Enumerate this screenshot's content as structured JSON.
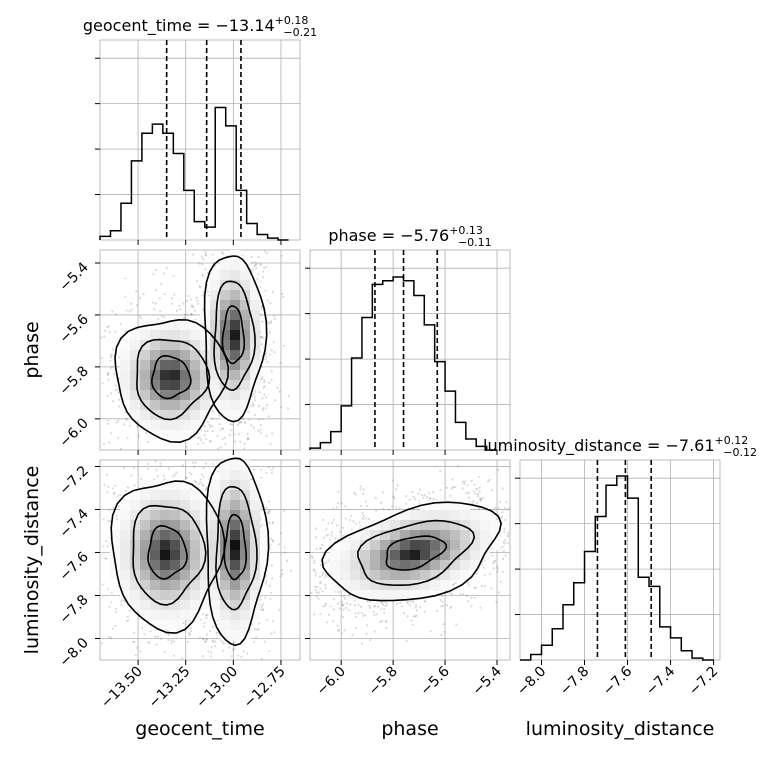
{
  "chart_data": {
    "type": "corner",
    "parameters": [
      {
        "name": "geocent_time",
        "label": "geocent_time",
        "title": {
          "main": "geocent_time = −13.14",
          "plus": "+0.18",
          "minus": "−0.21"
        },
        "range": [
          -13.7,
          -12.65
        ],
        "ticks": [
          -13.5,
          -13.25,
          -13.0,
          -12.75
        ],
        "tick_labels": [
          "−13.50",
          "−13.25",
          "−13.00",
          "−12.75"
        ],
        "quantiles": [
          -13.35,
          -13.14,
          -12.96
        ],
        "hist_bins": [
          -13.7,
          -13.645,
          -13.59,
          -13.535,
          -13.48,
          -13.425,
          -13.37,
          -13.315,
          -13.26,
          -13.205,
          -13.15,
          -13.095,
          -13.04,
          -12.985,
          -12.93,
          -12.875,
          -12.82,
          -12.765,
          -12.71
        ],
        "hist_counts": [
          0.02,
          0.05,
          0.2,
          0.43,
          0.58,
          0.63,
          0.58,
          0.47,
          0.27,
          0.1,
          0.07,
          0.72,
          0.62,
          0.27,
          0.09,
          0.03,
          0.01,
          0.0
        ]
      },
      {
        "name": "phase",
        "label": "phase",
        "title": {
          "main": "phase = −5.76",
          "plus": "+0.13",
          "minus": "−0.11"
        },
        "range": [
          -6.12,
          -5.35
        ],
        "ticks": [
          -6.0,
          -5.8,
          -5.6,
          -5.4
        ],
        "tick_labels": [
          "−6.0",
          "−5.8",
          "−5.6",
          "−5.4"
        ],
        "quantiles": [
          -5.87,
          -5.76,
          -5.63
        ],
        "hist_bins": [
          -6.12,
          -6.08,
          -6.04,
          -6.0,
          -5.96,
          -5.92,
          -5.88,
          -5.84,
          -5.8,
          -5.76,
          -5.72,
          -5.68,
          -5.64,
          -5.6,
          -5.56,
          -5.52,
          -5.48,
          -5.44,
          -5.4
        ],
        "hist_counts": [
          0.01,
          0.04,
          0.1,
          0.24,
          0.5,
          0.72,
          0.9,
          0.92,
          0.94,
          0.92,
          0.84,
          0.68,
          0.48,
          0.32,
          0.15,
          0.06,
          0.02,
          0.0
        ]
      },
      {
        "name": "luminosity_distance",
        "label": "luminosity_distance",
        "title": {
          "main": "luminosity_distance = −7.61",
          "plus": "+0.12",
          "minus": "−0.12"
        },
        "range": [
          -8.1,
          -7.17
        ],
        "ticks": [
          -8.0,
          -7.8,
          -7.6,
          -7.4,
          -7.2
        ],
        "tick_labels": [
          "−8.0",
          "−7.8",
          "−7.6",
          "−7.4",
          "−7.2"
        ],
        "quantiles": [
          -7.74,
          -7.61,
          -7.49
        ],
        "hist_bins": [
          -8.1,
          -8.05,
          -8.0,
          -7.95,
          -7.9,
          -7.85,
          -7.8,
          -7.75,
          -7.7,
          -7.65,
          -7.6,
          -7.55,
          -7.5,
          -7.45,
          -7.4,
          -7.35,
          -7.3,
          -7.25,
          -7.2
        ],
        "hist_counts": [
          0.0,
          0.03,
          0.08,
          0.17,
          0.3,
          0.42,
          0.59,
          0.78,
          0.95,
          1.0,
          0.88,
          0.45,
          0.4,
          0.18,
          0.12,
          0.05,
          0.01,
          0.0
        ]
      }
    ],
    "pair_cells": [
      {
        "row": 1,
        "col": 0,
        "blobs": [
          {
            "cx": -13.33,
            "cy": -5.84,
            "rx": 0.2,
            "ry": 0.16,
            "angle": 0
          },
          {
            "cx": -13.0,
            "cy": -5.68,
            "rx": 0.11,
            "ry": 0.22,
            "angle": 0
          }
        ]
      },
      {
        "row": 2,
        "col": 0,
        "blobs": [
          {
            "cx": -13.35,
            "cy": -7.6,
            "rx": 0.2,
            "ry": 0.24,
            "angle": 0
          },
          {
            "cx": -12.99,
            "cy": -7.58,
            "rx": 0.11,
            "ry": 0.3,
            "angle": 0
          }
        ]
      },
      {
        "row": 2,
        "col": 1,
        "blobs": [
          {
            "cx": -5.72,
            "cy": -7.6,
            "rx": 0.24,
            "ry": 0.14,
            "angle": 22
          }
        ]
      }
    ]
  }
}
